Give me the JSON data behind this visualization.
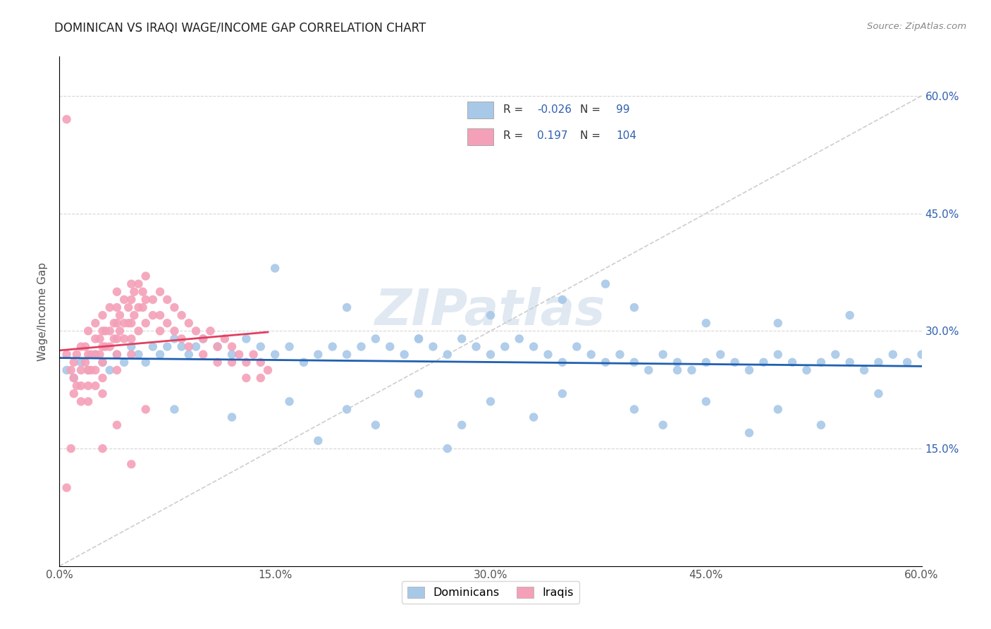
{
  "title": "DOMINICAN VS IRAQI WAGE/INCOME GAP CORRELATION CHART",
  "source": "Source: ZipAtlas.com",
  "ylabel": "Wage/Income Gap",
  "xlim": [
    0.0,
    0.6
  ],
  "ylim": [
    0.0,
    0.65
  ],
  "xtick_labels": [
    "0.0%",
    "15.0%",
    "30.0%",
    "45.0%",
    "60.0%"
  ],
  "xtick_values": [
    0.0,
    0.15,
    0.3,
    0.45,
    0.6
  ],
  "ytick_labels": [
    "15.0%",
    "30.0%",
    "45.0%",
    "60.0%"
  ],
  "ytick_values": [
    0.15,
    0.3,
    0.45,
    0.6
  ],
  "dominican_color": "#a8c8e8",
  "iraqi_color": "#f4a0b8",
  "dominican_line_color": "#2060b0",
  "iraqi_line_color": "#e04060",
  "diagonal_color": "#c8c8c8",
  "background_color": "#ffffff",
  "watermark": "ZIPatlas",
  "text_color": "#3060b0",
  "label_color": "#555555",
  "grid_color": "#cccccc",
  "dom_scatter_x": [
    0.005,
    0.01,
    0.015,
    0.02,
    0.025,
    0.03,
    0.035,
    0.04,
    0.045,
    0.05,
    0.055,
    0.06,
    0.065,
    0.07,
    0.075,
    0.08,
    0.085,
    0.09,
    0.095,
    0.1,
    0.11,
    0.12,
    0.13,
    0.14,
    0.15,
    0.16,
    0.17,
    0.18,
    0.19,
    0.2,
    0.21,
    0.22,
    0.23,
    0.24,
    0.25,
    0.26,
    0.27,
    0.28,
    0.29,
    0.3,
    0.31,
    0.32,
    0.33,
    0.34,
    0.35,
    0.36,
    0.37,
    0.38,
    0.39,
    0.4,
    0.41,
    0.42,
    0.43,
    0.44,
    0.45,
    0.46,
    0.47,
    0.48,
    0.49,
    0.5,
    0.51,
    0.52,
    0.53,
    0.54,
    0.55,
    0.56,
    0.57,
    0.58,
    0.59,
    0.6,
    0.08,
    0.12,
    0.16,
    0.2,
    0.25,
    0.3,
    0.35,
    0.4,
    0.45,
    0.5,
    0.15,
    0.2,
    0.25,
    0.3,
    0.35,
    0.4,
    0.45,
    0.5,
    0.55,
    0.38,
    0.22,
    0.28,
    0.33,
    0.42,
    0.48,
    0.53,
    0.57,
    0.18,
    0.27,
    0.43
  ],
  "dom_scatter_y": [
    0.25,
    0.24,
    0.26,
    0.25,
    0.27,
    0.26,
    0.25,
    0.27,
    0.26,
    0.28,
    0.27,
    0.26,
    0.28,
    0.27,
    0.28,
    0.29,
    0.28,
    0.27,
    0.28,
    0.29,
    0.28,
    0.27,
    0.29,
    0.28,
    0.27,
    0.28,
    0.26,
    0.27,
    0.28,
    0.27,
    0.28,
    0.29,
    0.28,
    0.27,
    0.29,
    0.28,
    0.27,
    0.29,
    0.28,
    0.27,
    0.28,
    0.29,
    0.28,
    0.27,
    0.26,
    0.28,
    0.27,
    0.26,
    0.27,
    0.26,
    0.25,
    0.27,
    0.26,
    0.25,
    0.26,
    0.27,
    0.26,
    0.25,
    0.26,
    0.27,
    0.26,
    0.25,
    0.26,
    0.27,
    0.26,
    0.25,
    0.26,
    0.27,
    0.26,
    0.27,
    0.2,
    0.19,
    0.21,
    0.2,
    0.22,
    0.21,
    0.22,
    0.2,
    0.21,
    0.2,
    0.38,
    0.33,
    0.29,
    0.32,
    0.34,
    0.33,
    0.31,
    0.31,
    0.32,
    0.36,
    0.18,
    0.18,
    0.19,
    0.18,
    0.17,
    0.18,
    0.22,
    0.16,
    0.15,
    0.25
  ],
  "irq_scatter_x": [
    0.005,
    0.005,
    0.008,
    0.008,
    0.01,
    0.01,
    0.01,
    0.012,
    0.012,
    0.015,
    0.015,
    0.015,
    0.015,
    0.018,
    0.018,
    0.02,
    0.02,
    0.02,
    0.02,
    0.02,
    0.022,
    0.022,
    0.025,
    0.025,
    0.025,
    0.025,
    0.025,
    0.028,
    0.028,
    0.03,
    0.03,
    0.03,
    0.03,
    0.03,
    0.03,
    0.032,
    0.032,
    0.035,
    0.035,
    0.035,
    0.038,
    0.038,
    0.04,
    0.04,
    0.04,
    0.04,
    0.04,
    0.04,
    0.042,
    0.042,
    0.045,
    0.045,
    0.045,
    0.048,
    0.048,
    0.05,
    0.05,
    0.05,
    0.05,
    0.05,
    0.052,
    0.052,
    0.055,
    0.055,
    0.055,
    0.058,
    0.058,
    0.06,
    0.06,
    0.06,
    0.065,
    0.065,
    0.07,
    0.07,
    0.07,
    0.075,
    0.075,
    0.08,
    0.08,
    0.085,
    0.085,
    0.09,
    0.09,
    0.095,
    0.1,
    0.1,
    0.105,
    0.11,
    0.11,
    0.115,
    0.12,
    0.12,
    0.125,
    0.13,
    0.13,
    0.135,
    0.14,
    0.14,
    0.145,
    0.005,
    0.03,
    0.04,
    0.05,
    0.06
  ],
  "irq_scatter_y": [
    0.27,
    0.57,
    0.25,
    0.15,
    0.26,
    0.24,
    0.22,
    0.27,
    0.23,
    0.28,
    0.25,
    0.23,
    0.21,
    0.28,
    0.26,
    0.3,
    0.27,
    0.25,
    0.23,
    0.21,
    0.27,
    0.25,
    0.31,
    0.29,
    0.27,
    0.25,
    0.23,
    0.29,
    0.27,
    0.32,
    0.3,
    0.28,
    0.26,
    0.24,
    0.22,
    0.3,
    0.28,
    0.33,
    0.3,
    0.28,
    0.31,
    0.29,
    0.35,
    0.33,
    0.31,
    0.29,
    0.27,
    0.25,
    0.32,
    0.3,
    0.34,
    0.31,
    0.29,
    0.33,
    0.31,
    0.36,
    0.34,
    0.31,
    0.29,
    0.27,
    0.35,
    0.32,
    0.36,
    0.33,
    0.3,
    0.35,
    0.33,
    0.37,
    0.34,
    0.31,
    0.34,
    0.32,
    0.35,
    0.32,
    0.3,
    0.34,
    0.31,
    0.33,
    0.3,
    0.32,
    0.29,
    0.31,
    0.28,
    0.3,
    0.29,
    0.27,
    0.3,
    0.28,
    0.26,
    0.29,
    0.28,
    0.26,
    0.27,
    0.26,
    0.24,
    0.27,
    0.26,
    0.24,
    0.25,
    0.1,
    0.15,
    0.18,
    0.13,
    0.2
  ]
}
